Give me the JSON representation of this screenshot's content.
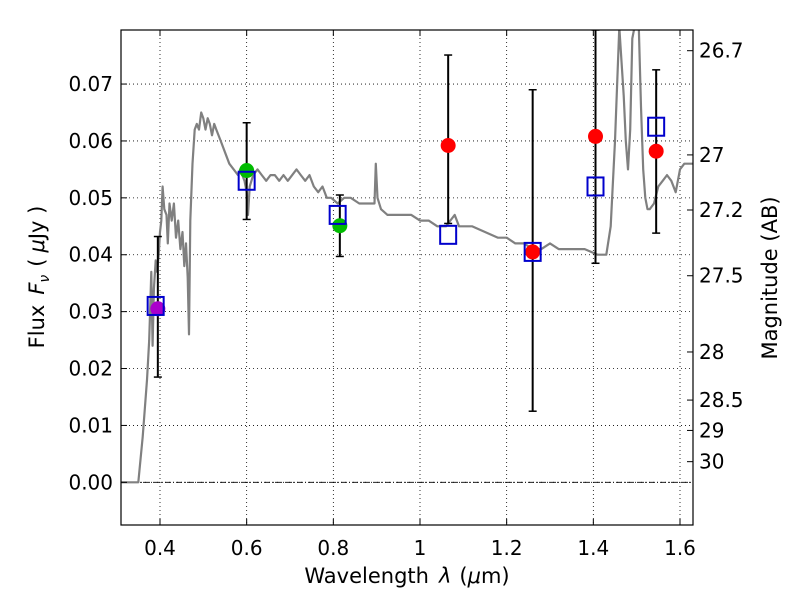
{
  "chart_data": {
    "type": "scatter",
    "xlabel_prefix": "Wavelength",
    "xlabel_sym": "λ",
    "xlabel_unit_open": "(",
    "xlabel_mu": "μ",
    "xlabel_unit_close": "m)",
    "ylabel_prefix": "Flux",
    "ylabel_sym": "F",
    "ylabel_sub": "ν",
    "ylabel_unit_open": "(",
    "ylabel_mu": "μ",
    "ylabel_unit_close": "Jy )",
    "y2label": "Magnitude (AB)",
    "xlim": [
      0.31,
      1.63
    ],
    "ylim": [
      -0.0075,
      0.0795
    ],
    "grid": true,
    "xticks": [
      {
        "value": 0.4,
        "label": "0.4"
      },
      {
        "value": 0.6,
        "label": "0.6"
      },
      {
        "value": 0.8,
        "label": "0.8"
      },
      {
        "value": 1.0,
        "label": "1"
      },
      {
        "value": 1.2,
        "label": "1.2"
      },
      {
        "value": 1.4,
        "label": "1.4"
      },
      {
        "value": 1.6,
        "label": "1.6"
      }
    ],
    "yticks": [
      {
        "value": 0.0,
        "label": "0.00"
      },
      {
        "value": 0.01,
        "label": "0.01"
      },
      {
        "value": 0.02,
        "label": "0.02"
      },
      {
        "value": 0.03,
        "label": "0.03"
      },
      {
        "value": 0.04,
        "label": "0.04"
      },
      {
        "value": 0.05,
        "label": "0.05"
      },
      {
        "value": 0.06,
        "label": "0.06"
      },
      {
        "value": 0.07,
        "label": "0.07"
      }
    ],
    "y2ticks": [
      {
        "mag": 26.7,
        "label": "26.7"
      },
      {
        "mag": 27.0,
        "label": "27"
      },
      {
        "mag": 27.2,
        "label": "27.2"
      },
      {
        "mag": 27.5,
        "label": "27.5"
      },
      {
        "mag": 28.0,
        "label": "28"
      },
      {
        "mag": 28.5,
        "label": "28.5"
      },
      {
        "mag": 29.0,
        "label": "29"
      },
      {
        "mag": 30.0,
        "label": "30"
      }
    ],
    "zero_line": 0.0,
    "series": [
      {
        "name": "model-sed",
        "kind": "line",
        "color": "#808080",
        "points": [
          [
            0.31,
            0.0
          ],
          [
            0.35,
            0.0
          ],
          [
            0.36,
            0.008
          ],
          [
            0.37,
            0.018
          ],
          [
            0.375,
            0.025
          ],
          [
            0.38,
            0.037
          ],
          [
            0.383,
            0.024
          ],
          [
            0.386,
            0.034
          ],
          [
            0.39,
            0.039
          ],
          [
            0.393,
            0.037
          ],
          [
            0.397,
            0.04
          ],
          [
            0.4,
            0.044
          ],
          [
            0.403,
            0.046
          ],
          [
            0.406,
            0.052
          ],
          [
            0.41,
            0.048
          ],
          [
            0.415,
            0.047
          ],
          [
            0.418,
            0.042
          ],
          [
            0.422,
            0.049
          ],
          [
            0.427,
            0.046
          ],
          [
            0.432,
            0.049
          ],
          [
            0.437,
            0.043
          ],
          [
            0.442,
            0.046
          ],
          [
            0.447,
            0.041
          ],
          [
            0.452,
            0.044
          ],
          [
            0.456,
            0.038
          ],
          [
            0.46,
            0.042
          ],
          [
            0.464,
            0.036
          ],
          [
            0.467,
            0.026
          ],
          [
            0.47,
            0.046
          ],
          [
            0.475,
            0.056
          ],
          [
            0.48,
            0.062
          ],
          [
            0.485,
            0.063
          ],
          [
            0.49,
            0.062
          ],
          [
            0.495,
            0.065
          ],
          [
            0.5,
            0.064
          ],
          [
            0.505,
            0.062
          ],
          [
            0.51,
            0.064
          ],
          [
            0.515,
            0.063
          ],
          [
            0.52,
            0.061
          ],
          [
            0.525,
            0.063
          ],
          [
            0.53,
            0.062
          ],
          [
            0.54,
            0.06
          ],
          [
            0.55,
            0.058
          ],
          [
            0.56,
            0.056
          ],
          [
            0.57,
            0.055
          ],
          [
            0.58,
            0.054
          ],
          [
            0.585,
            0.055
          ],
          [
            0.59,
            0.054
          ],
          [
            0.595,
            0.053
          ],
          [
            0.6,
            0.051
          ],
          [
            0.603,
            0.047
          ],
          [
            0.607,
            0.052
          ],
          [
            0.615,
            0.054
          ],
          [
            0.625,
            0.055
          ],
          [
            0.635,
            0.054
          ],
          [
            0.645,
            0.053
          ],
          [
            0.655,
            0.054
          ],
          [
            0.665,
            0.054
          ],
          [
            0.675,
            0.053
          ],
          [
            0.685,
            0.054
          ],
          [
            0.695,
            0.053
          ],
          [
            0.705,
            0.054
          ],
          [
            0.715,
            0.055
          ],
          [
            0.725,
            0.054
          ],
          [
            0.735,
            0.053
          ],
          [
            0.745,
            0.054
          ],
          [
            0.755,
            0.052
          ],
          [
            0.765,
            0.051
          ],
          [
            0.775,
            0.052
          ],
          [
            0.785,
            0.05
          ],
          [
            0.795,
            0.05
          ],
          [
            0.81,
            0.049
          ],
          [
            0.825,
            0.05
          ],
          [
            0.84,
            0.05
          ],
          [
            0.86,
            0.049
          ],
          [
            0.88,
            0.049
          ],
          [
            0.895,
            0.049
          ],
          [
            0.898,
            0.056
          ],
          [
            0.902,
            0.05
          ],
          [
            0.91,
            0.048
          ],
          [
            0.925,
            0.047
          ],
          [
            0.94,
            0.047
          ],
          [
            0.96,
            0.047
          ],
          [
            0.98,
            0.047
          ],
          [
            1.0,
            0.046
          ],
          [
            1.02,
            0.046
          ],
          [
            1.04,
            0.045
          ],
          [
            1.06,
            0.045
          ],
          [
            1.07,
            0.046
          ],
          [
            1.08,
            0.047
          ],
          [
            1.09,
            0.045
          ],
          [
            1.12,
            0.045
          ],
          [
            1.15,
            0.044
          ],
          [
            1.18,
            0.043
          ],
          [
            1.2,
            0.043
          ],
          [
            1.22,
            0.042
          ],
          [
            1.24,
            0.042
          ],
          [
            1.26,
            0.041
          ],
          [
            1.28,
            0.041
          ],
          [
            1.3,
            0.042
          ],
          [
            1.32,
            0.041
          ],
          [
            1.35,
            0.041
          ],
          [
            1.38,
            0.041
          ],
          [
            1.41,
            0.04
          ],
          [
            1.43,
            0.04
          ],
          [
            1.44,
            0.045
          ],
          [
            1.45,
            0.06
          ],
          [
            1.46,
            0.08
          ],
          [
            1.47,
            0.068
          ],
          [
            1.475,
            0.06
          ],
          [
            1.48,
            0.055
          ],
          [
            1.485,
            0.062
          ],
          [
            1.49,
            0.078
          ],
          [
            1.495,
            0.08
          ],
          [
            1.5,
            0.08
          ],
          [
            1.505,
            0.08
          ],
          [
            1.51,
            0.066
          ],
          [
            1.515,
            0.055
          ],
          [
            1.52,
            0.05
          ],
          [
            1.525,
            0.048
          ],
          [
            1.53,
            0.048
          ],
          [
            1.54,
            0.049
          ],
          [
            1.55,
            0.052
          ],
          [
            1.56,
            0.053
          ],
          [
            1.57,
            0.054
          ],
          [
            1.58,
            0.053
          ],
          [
            1.59,
            0.051
          ],
          [
            1.6,
            0.055
          ],
          [
            1.61,
            0.056
          ],
          [
            1.63,
            0.056
          ]
        ]
      },
      {
        "name": "model-photometry",
        "kind": "open-square",
        "color": "#0000cc",
        "points": [
          [
            0.39,
            0.031
          ],
          [
            0.6,
            0.053
          ],
          [
            0.81,
            0.047
          ],
          [
            1.065,
            0.0435
          ],
          [
            1.26,
            0.0405
          ],
          [
            1.405,
            0.052
          ],
          [
            1.545,
            0.0625
          ]
        ]
      },
      {
        "name": "observed-detections-red",
        "kind": "circle",
        "color": "#ff0000",
        "points": [
          [
            1.065,
            0.0592
          ],
          [
            1.26,
            0.0405
          ],
          [
            1.405,
            0.0608
          ],
          [
            1.545,
            0.0582
          ]
        ]
      },
      {
        "name": "observed-detections-green",
        "kind": "circle",
        "color": "#00bb00",
        "points": [
          [
            0.6,
            0.0548
          ],
          [
            0.815,
            0.0451
          ]
        ]
      },
      {
        "name": "observed-detections-magenta",
        "kind": "circle",
        "color": "#aa00cc",
        "points": [
          [
            0.395,
            0.0305
          ]
        ]
      },
      {
        "name": "error-bars",
        "kind": "errorbar",
        "color": "#000000",
        "points": [
          {
            "x": 0.395,
            "low": 0.0185,
            "high": 0.0432
          },
          {
            "x": 0.6,
            "low": 0.0462,
            "high": 0.0632
          },
          {
            "x": 0.815,
            "low": 0.0397,
            "high": 0.0505
          },
          {
            "x": 1.065,
            "low": 0.0455,
            "high": 0.0751
          },
          {
            "x": 1.26,
            "low": 0.0125,
            "high": 0.069
          },
          {
            "x": 1.405,
            "low": 0.0385,
            "high": 0.0795
          },
          {
            "x": 1.545,
            "low": 0.0438,
            "high": 0.0725
          }
        ]
      }
    ]
  }
}
